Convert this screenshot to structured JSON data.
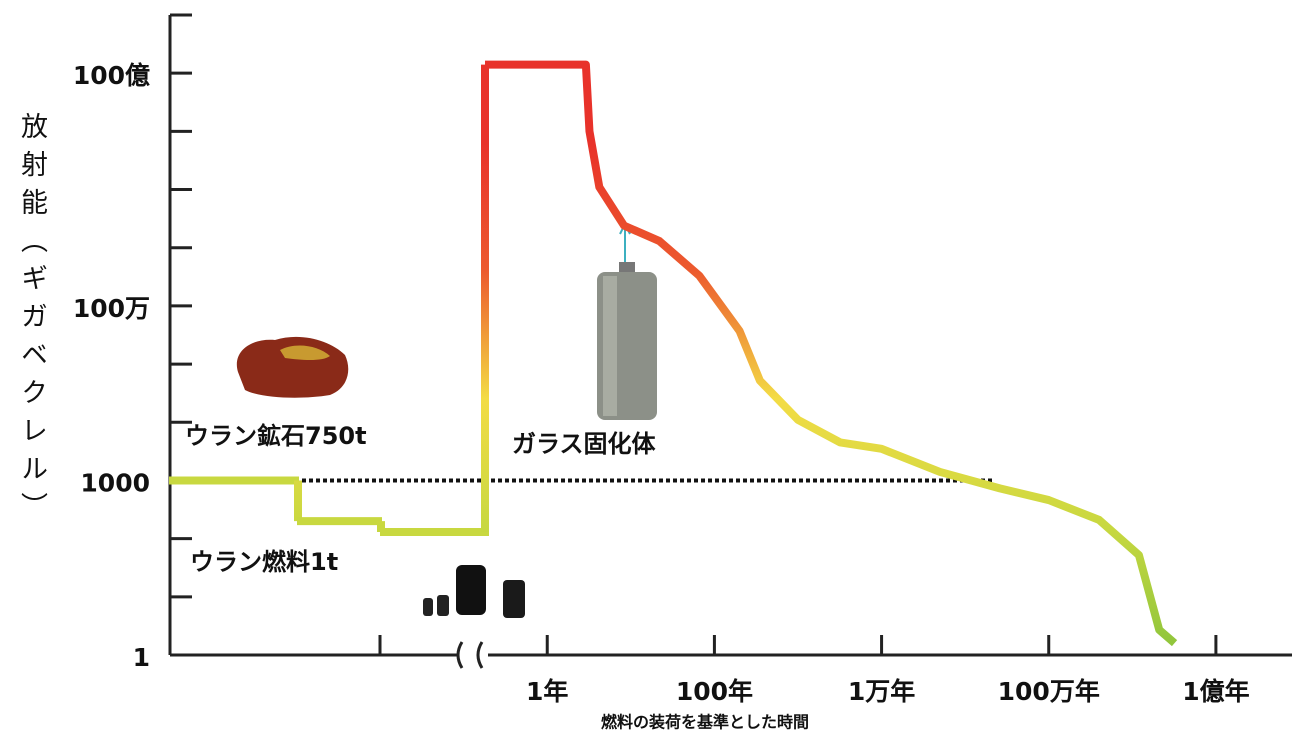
{
  "chart_data": {
    "type": "line",
    "y_label": "放射能（ギガベクレル）",
    "x_label": "燃料の装荷を基準とした時間",
    "y_log": true,
    "x_log": true,
    "ylim": [
      1,
      100000000000
    ],
    "yticks": [
      1,
      1000,
      {
        "value": 1000000,
        "label": "100万"
      },
      {
        "value": 10000000000,
        "label": "100億"
      }
    ],
    "minor_yticks": [
      10,
      100,
      10000,
      100000,
      10000000,
      100000000,
      1000000000,
      100000000000
    ],
    "xlim": [
      0.18,
      770000000
    ],
    "xticks": [
      {
        "value": 1,
        "label": "1年"
      },
      {
        "value": 100,
        "label": "100年"
      },
      {
        "value": 10000,
        "label": "1万年"
      },
      {
        "value": 1000000,
        "label": "100万年"
      },
      {
        "value": 100000000,
        "label": "1億年"
      }
    ],
    "gradient": [
      "#e8322a",
      "#e8322a",
      "#ec5a2e",
      "#f3dc45",
      "#c8d840",
      "#8cc43c"
    ],
    "reference_value": 1000,
    "pre_load": [
      {
        "name": "ウラン鉱石750t",
        "values": [
          1000
        ]
      },
      {
        "name": "ウラン燃料1t",
        "values": [
          200,
          130
        ]
      }
    ],
    "series": [
      {
        "name": "ガラス固化体",
        "x": [
          0.18,
          2.9,
          3.2,
          4.2,
          8.3,
          22,
          66,
          200,
          350,
          1000,
          3200,
          10000,
          50000,
          260000,
          1000000,
          4000000,
          12000000,
          21000000,
          32000000
        ],
        "values": [
          14000000000,
          14000000000,
          1000000000,
          110000000,
          24000000,
          13000000,
          3300000,
          370000,
          52000,
          11000,
          4500,
          3500,
          1400,
          730,
          460,
          210,
          52,
          2.7,
          1.6
        ]
      }
    ]
  }
}
